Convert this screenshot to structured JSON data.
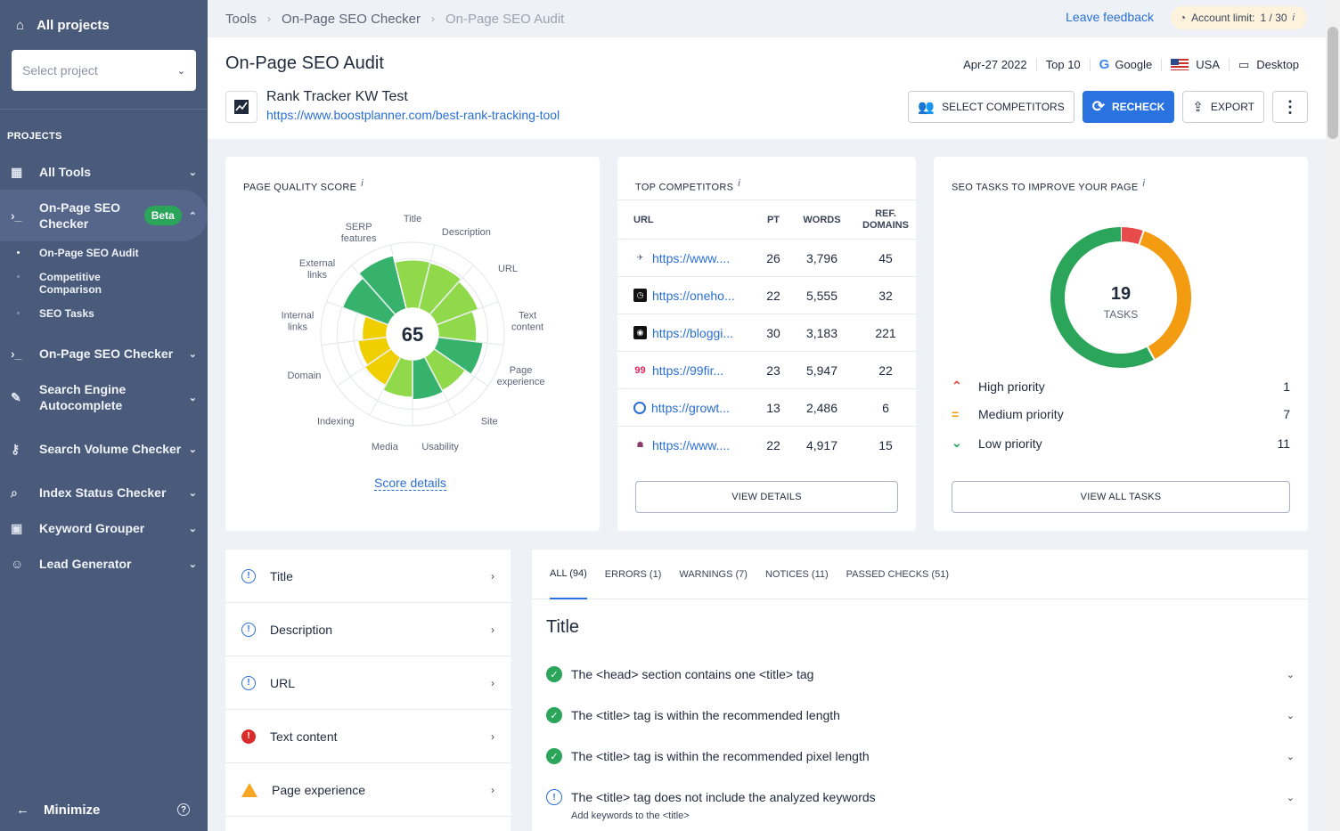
{
  "sidebar": {
    "all_projects": "All projects",
    "select_project_placeholder": "Select project",
    "projects_heading": "PROJECTS",
    "items": [
      {
        "label": "All Tools"
      },
      {
        "label": "On-Page SEO Checker",
        "badge": "Beta"
      },
      {
        "label": "On-Page SEO Checker"
      },
      {
        "label": "Search Engine Autocomplete"
      },
      {
        "label": "Search Volume Checker"
      },
      {
        "label": "Index Status Checker"
      },
      {
        "label": "Keyword Grouper"
      },
      {
        "label": "Lead Generator"
      }
    ],
    "sub_items": [
      {
        "label": "On-Page SEO Audit"
      },
      {
        "label": "Competitive Comparison"
      },
      {
        "label": "SEO Tasks"
      }
    ],
    "minimize": "Minimize"
  },
  "breadcrumb": {
    "items": [
      "Tools",
      "On-Page SEO Checker",
      "On-Page SEO Audit"
    ]
  },
  "topbar": {
    "feedback": "Leave feedback",
    "account_limit_label": "Account limit:",
    "account_limit_value": "1 / 30"
  },
  "header": {
    "title": "On-Page SEO Audit",
    "date": "Apr-27 2022",
    "top": "Top 10",
    "engine": "Google",
    "country": "USA",
    "device": "Desktop",
    "project_name": "Rank Tracker KW Test",
    "project_url": "https://www.boostplanner.com/best-rank-tracking-tool",
    "buttons": {
      "competitors": "SELECT COMPETITORS",
      "recheck": "RECHECK",
      "export": "EXPORT"
    }
  },
  "quality": {
    "title": "PAGE QUALITY SCORE",
    "score": "65",
    "labels": [
      "Title",
      "Description",
      "URL",
      "Text content",
      "Page experience",
      "Site",
      "Usability",
      "Media",
      "Indexing",
      "Domain",
      "Internal links",
      "External links",
      "SERP features"
    ],
    "segment_levels": [
      0.63,
      0.62,
      0.58,
      0.5,
      0.59,
      0.5,
      0.52,
      0.49,
      0.42,
      0.38,
      0.32,
      0.64,
      0.72
    ],
    "segment_colors": [
      "#8fd94a",
      "#8fd94a",
      "#8fd94a",
      "#8fd94a",
      "#36b26d",
      "#8fd94a",
      "#36b26d",
      "#8fd94a",
      "#f0cf00",
      "#f0cf00",
      "#f0cf00",
      "#36b26d",
      "#36b26d"
    ],
    "score_details": "Score details"
  },
  "competitors": {
    "title": "TOP COMPETITORS",
    "columns": [
      "URL",
      "PT",
      "WORDS",
      "REF. DOMAINS"
    ],
    "rows": [
      {
        "url": "https://www....",
        "pt": "26",
        "words": "3,796",
        "ref": "45"
      },
      {
        "url": "https://oneho...",
        "pt": "22",
        "words": "5,555",
        "ref": "32"
      },
      {
        "url": "https://bloggi...",
        "pt": "30",
        "words": "3,183",
        "ref": "221"
      },
      {
        "url": "https://99fir...",
        "pt": "23",
        "words": "5,947",
        "ref": "22"
      },
      {
        "url": "https://growt...",
        "pt": "13",
        "words": "2,486",
        "ref": "6"
      },
      {
        "url": "https://www....",
        "pt": "22",
        "words": "4,917",
        "ref": "15"
      }
    ],
    "view_details": "VIEW DETAILS"
  },
  "tasks": {
    "title": "SEO TASKS TO IMPROVE YOUR PAGE",
    "total": "19",
    "total_label": "TASKS",
    "priorities": [
      {
        "label": "High priority",
        "count": "1",
        "color": "#e84b4b"
      },
      {
        "label": "Medium priority",
        "count": "7",
        "color": "#f39c12"
      },
      {
        "label": "Low priority",
        "count": "11",
        "color": "#2aa55a"
      }
    ],
    "view_all": "VIEW ALL TASKS"
  },
  "categories": [
    {
      "label": "Title",
      "status": "info"
    },
    {
      "label": "Description",
      "status": "info"
    },
    {
      "label": "URL",
      "status": "info"
    },
    {
      "label": "Text content",
      "status": "error"
    },
    {
      "label": "Page experience",
      "status": "warning"
    }
  ],
  "checks": {
    "tabs": [
      "ALL (94)",
      "ERRORS (1)",
      "WARNINGS (7)",
      "NOTICES (11)",
      "PASSED CHECKS (51)"
    ],
    "section_title": "Title",
    "items": [
      {
        "text": "The <head> section contains one <title> tag",
        "status": "passed"
      },
      {
        "text": "The <title> tag is within the recommended length",
        "status": "passed"
      },
      {
        "text": "The <title> tag is within the recommended pixel length",
        "status": "passed"
      },
      {
        "text": "The <title> tag does not include the analyzed keywords",
        "status": "notice",
        "sub": "Add keywords to the <title>"
      }
    ]
  }
}
